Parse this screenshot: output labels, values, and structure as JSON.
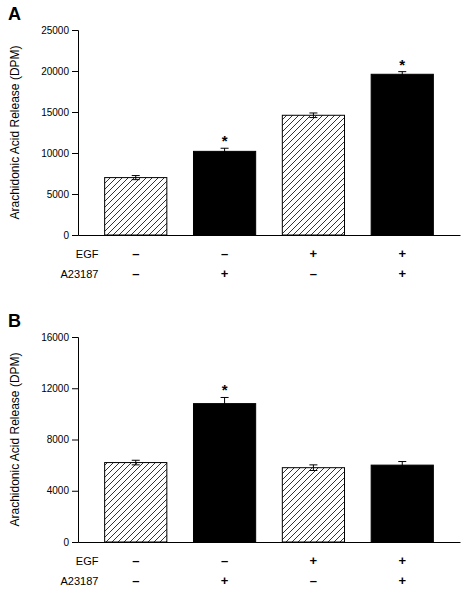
{
  "chart_data": [
    {
      "type": "bar",
      "title": "A",
      "ylabel": "Arachidonic Acid Release (DPM)",
      "values": [
        7000,
        10200,
        14600,
        19600
      ],
      "errors": [
        250,
        380,
        280,
        320
      ],
      "colors": [
        "white",
        "black",
        "white",
        "black"
      ],
      "star_labels": [
        null,
        "*",
        null,
        "*"
      ],
      "category_rows": [
        {
          "name": "EGF",
          "labels": [
            "–",
            "–",
            "+",
            "+"
          ]
        },
        {
          "name": "A23187",
          "labels": [
            "–",
            "+",
            "–",
            "+"
          ]
        }
      ],
      "ylim": [
        0,
        25000
      ],
      "yticks": [
        0,
        5000,
        10000,
        15000,
        20000,
        25000
      ]
    },
    {
      "type": "bar",
      "title": "B",
      "ylabel": "Arachidonic Acid Release (DPM)",
      "values": [
        6200,
        10800,
        5800,
        6000
      ],
      "errors": [
        180,
        480,
        220,
        280
      ],
      "colors": [
        "white",
        "black",
        "white",
        "black"
      ],
      "star_labels": [
        null,
        "*",
        null,
        null
      ],
      "category_rows": [
        {
          "name": "EGF",
          "labels": [
            "–",
            "–",
            "+",
            "+"
          ]
        },
        {
          "name": "A23187",
          "labels": [
            "–",
            "+",
            "–",
            "+"
          ]
        }
      ],
      "ylim": [
        0,
        16000
      ],
      "yticks": [
        0,
        4000,
        8000,
        12000,
        16000
      ]
    }
  ]
}
